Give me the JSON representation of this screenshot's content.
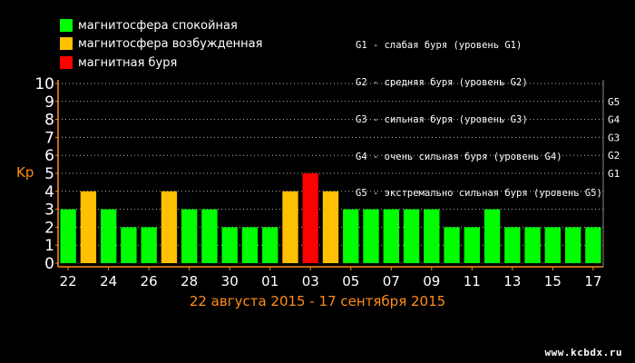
{
  "legend": [
    {
      "label": "магнитосфера спокойная",
      "color": "#00ff00"
    },
    {
      "label": "магнитосфера возбужденная",
      "color": "#ffc000"
    },
    {
      "label": "магнитная буря",
      "color": "#ff0000"
    }
  ],
  "storm_levels": [
    "G1 - слабая буря (уровень G1)",
    "G2 - средняя буря (уровень G2)",
    "G3 - сильная буря (уровень G3)",
    "G4 - очень сильная буря (уровень G4)",
    "G5 - экстремально сильная буря (уровень G5)"
  ],
  "caption": "22 августа 2015 - 17 сентября 2015",
  "watermark": "www.kcbdx.ru",
  "chart_data": {
    "type": "bar",
    "ylabel": "Kp",
    "ylim": [
      0,
      10
    ],
    "yticks": [
      "0",
      "1",
      "2",
      "3",
      "4",
      "5",
      "6",
      "7",
      "8",
      "9",
      "10"
    ],
    "right_ticks": [
      {
        "label": "G1",
        "value": 5
      },
      {
        "label": "G2",
        "value": 6
      },
      {
        "label": "G3",
        "value": 7
      },
      {
        "label": "G4",
        "value": 8
      },
      {
        "label": "G5",
        "value": 9
      }
    ],
    "grid": true,
    "x_tick_labels": [
      {
        "index": 0,
        "label": "22"
      },
      {
        "index": 2,
        "label": "24"
      },
      {
        "index": 4,
        "label": "26"
      },
      {
        "index": 6,
        "label": "28"
      },
      {
        "index": 8,
        "label": "30"
      },
      {
        "index": 10,
        "label": "01"
      },
      {
        "index": 12,
        "label": "03"
      },
      {
        "index": 14,
        "label": "05"
      },
      {
        "index": 16,
        "label": "07"
      },
      {
        "index": 18,
        "label": "09"
      },
      {
        "index": 20,
        "label": "11"
      },
      {
        "index": 22,
        "label": "13"
      },
      {
        "index": 24,
        "label": "15"
      },
      {
        "index": 26,
        "label": "17"
      }
    ],
    "values": [
      3,
      4,
      3,
      2,
      2,
      4,
      3,
      3,
      2,
      2,
      2,
      4,
      5,
      4,
      3,
      3,
      3,
      3,
      3,
      2,
      2,
      3,
      2,
      2,
      2,
      2,
      2
    ],
    "colors": {
      "quiet": "#00ff00",
      "active": "#ffc000",
      "storm": "#ff0000"
    },
    "axis_color": "#ff8c1a"
  }
}
